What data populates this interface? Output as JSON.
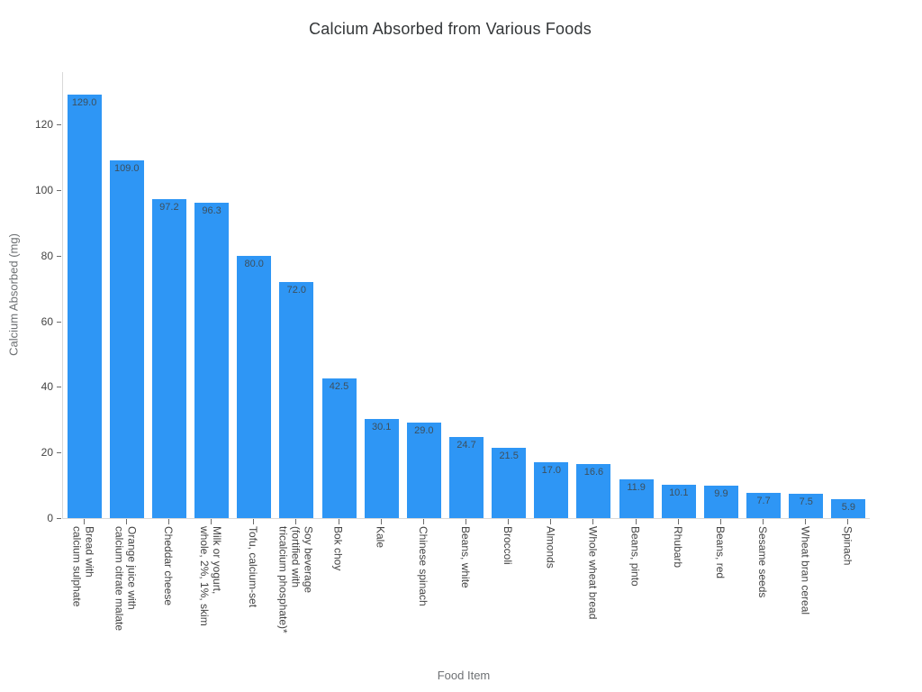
{
  "chart": {
    "title": "Calcium Absorbed from Various Foods",
    "xlabel": "Food Item",
    "ylabel": "Calcium Absorbed (mg)"
  },
  "chart_data": {
    "type": "bar",
    "title": "Calcium Absorbed from Various Foods",
    "xlabel": "Food Item",
    "ylabel": "Calcium Absorbed (mg)",
    "categories": [
      "Bread with\ncalcium sulphate",
      "Orange juice with\ncalcium citrate malate",
      "Cheddar cheese",
      "Milk or yogurt,\nwhole, 2%, 1%, skim",
      "Tofu, calcium-set",
      "Soy beverage\n(fortified with\ntricalcium phosphate)*",
      "Bok choy",
      "Kale",
      "Chinese spinach",
      "Beans, white",
      "Broccoli",
      "Almonds",
      "Whole wheat bread",
      "Beans, pinto",
      "Rhubarb",
      "Beans, red",
      "Sesame seeds",
      "Wheat bran cereal",
      "Spinach"
    ],
    "values": [
      129.0,
      109.0,
      97.2,
      96.3,
      80.0,
      72.0,
      42.5,
      30.1,
      29.0,
      24.7,
      21.5,
      17.0,
      16.6,
      11.9,
      10.1,
      9.9,
      7.7,
      7.5,
      5.9
    ],
    "value_labels": [
      "129.0",
      "109.0",
      "97.2",
      "96.3",
      "80.0",
      "72.0",
      "42.5",
      "30.1",
      "29.0",
      "24.7",
      "21.5",
      "17.0",
      "16.6",
      "11.9",
      "10.1",
      "9.9",
      "7.7",
      "7.5",
      "5.9"
    ],
    "ylim": [
      0,
      136
    ],
    "yticks": [
      0,
      20,
      40,
      60,
      80,
      100,
      120
    ],
    "grid": false,
    "legend": "none",
    "bar_color": "#2E96F5",
    "inside_label_color": "#3d4f5c",
    "axis_line_color": "#d9d9d9"
  }
}
